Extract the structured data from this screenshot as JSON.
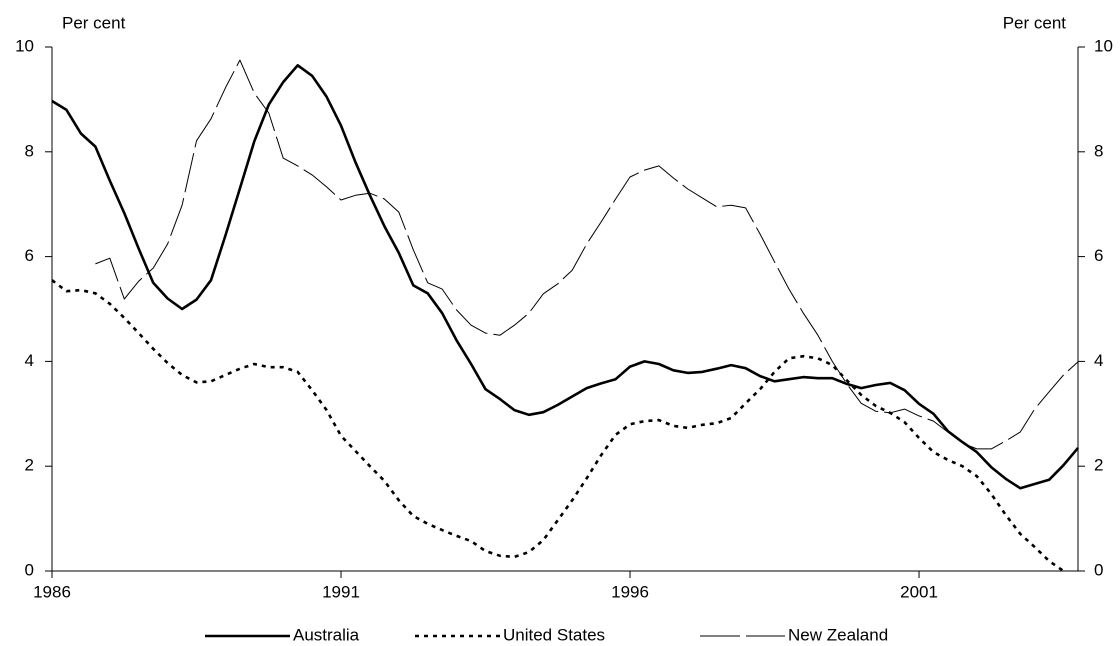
{
  "chart_data": {
    "type": "line",
    "y_label": "Per cent",
    "y2_label": "Per cent",
    "x": [
      1986,
      1986.25,
      1986.5,
      1986.75,
      1987,
      1987.25,
      1987.5,
      1987.75,
      1988,
      1988.25,
      1988.5,
      1988.75,
      1989,
      1989.25,
      1989.5,
      1989.75,
      1990,
      1990.25,
      1990.5,
      1990.75,
      1991,
      1991.25,
      1991.5,
      1991.75,
      1992,
      1992.25,
      1992.5,
      1992.75,
      1993,
      1993.25,
      1993.5,
      1993.75,
      1994,
      1994.25,
      1994.5,
      1994.75,
      1995,
      1995.25,
      1995.5,
      1995.75,
      1996,
      1996.25,
      1996.5,
      1996.75,
      1997,
      1997.25,
      1997.5,
      1997.75,
      1998,
      1998.25,
      1998.5,
      1998.75,
      1999,
      1999.25,
      1999.5,
      1999.75,
      2000,
      2000.25,
      2000.5,
      2000.75,
      2001,
      2001.25,
      2001.5,
      2001.75,
      2002,
      2002.25,
      2002.5,
      2002.75,
      2003,
      2003.25,
      2003.5,
      2003.75
    ],
    "xlim": [
      1986,
      2003.75
    ],
    "xticks": [
      1986,
      1991,
      1996,
      2001
    ],
    "ylim": [
      0,
      10
    ],
    "yticks": [
      0,
      2,
      4,
      6,
      8,
      10
    ],
    "y2lim": [
      0,
      10
    ],
    "y2ticks": [
      0,
      2,
      4,
      6,
      8,
      10
    ],
    "legend": "bottom",
    "series": [
      {
        "name": "Australia",
        "color": "#000000",
        "style": "solid",
        "values": [
          8.97,
          8.8,
          8.35,
          8.1,
          7.45,
          6.83,
          6.15,
          5.5,
          5.2,
          5.0,
          5.18,
          5.55,
          6.4,
          7.3,
          8.2,
          8.9,
          9.33,
          9.65,
          9.45,
          9.05,
          8.5,
          7.8,
          7.17,
          6.58,
          6.07,
          5.45,
          5.3,
          4.92,
          4.4,
          3.95,
          3.47,
          3.28,
          3.07,
          2.98,
          3.03,
          3.17,
          3.33,
          3.49,
          3.58,
          3.66,
          3.9,
          4.0,
          3.95,
          3.83,
          3.78,
          3.8,
          3.86,
          3.93,
          3.87,
          3.72,
          3.62,
          3.66,
          3.7,
          3.68,
          3.68,
          3.57,
          3.49,
          3.55,
          3.59,
          3.45,
          3.19,
          3.0,
          2.67,
          2.46,
          2.27,
          1.98,
          1.76,
          1.58,
          1.66,
          1.74,
          2.02,
          2.35
        ]
      },
      {
        "name": "United States",
        "color": "#000000",
        "style": "dotted",
        "values": [
          5.55,
          5.34,
          5.36,
          5.3,
          5.1,
          4.83,
          4.54,
          4.24,
          3.97,
          3.74,
          3.6,
          3.62,
          3.74,
          3.86,
          3.95,
          3.89,
          3.89,
          3.8,
          3.45,
          3.07,
          2.58,
          2.29,
          2.0,
          1.72,
          1.35,
          1.05,
          0.9,
          0.78,
          0.67,
          0.57,
          0.38,
          0.29,
          0.27,
          0.36,
          0.59,
          0.97,
          1.35,
          1.77,
          2.21,
          2.6,
          2.8,
          2.86,
          2.88,
          2.77,
          2.73,
          2.79,
          2.82,
          2.92,
          3.2,
          3.47,
          3.8,
          4.06,
          4.1,
          4.06,
          3.93,
          3.64,
          3.36,
          3.15,
          3.02,
          2.84,
          2.54,
          2.27,
          2.12,
          2.0,
          1.81,
          1.47,
          1.07,
          0.71,
          0.46,
          0.19,
          0.0,
          null
        ]
      },
      {
        "name": "New Zealand",
        "color": "#000000",
        "style": "dashed",
        "values": [
          null,
          null,
          null,
          5.86,
          5.97,
          5.19,
          5.53,
          5.78,
          6.24,
          6.98,
          8.21,
          8.63,
          9.22,
          9.75,
          9.12,
          8.74,
          7.88,
          7.73,
          7.56,
          7.33,
          7.08,
          7.17,
          7.21,
          7.1,
          6.85,
          6.13,
          5.5,
          5.38,
          4.98,
          4.69,
          4.54,
          4.5,
          4.69,
          4.92,
          5.29,
          5.48,
          5.74,
          6.24,
          6.66,
          7.1,
          7.52,
          7.65,
          7.73,
          7.5,
          7.29,
          7.12,
          6.95,
          6.98,
          6.93,
          6.43,
          5.9,
          5.38,
          4.92,
          4.5,
          4.0,
          3.57,
          3.2,
          3.05,
          3.02,
          3.09,
          2.96,
          2.86,
          2.65,
          2.44,
          2.33,
          2.33,
          2.48,
          2.65,
          3.09,
          3.42,
          3.74,
          3.99
        ]
      }
    ]
  }
}
